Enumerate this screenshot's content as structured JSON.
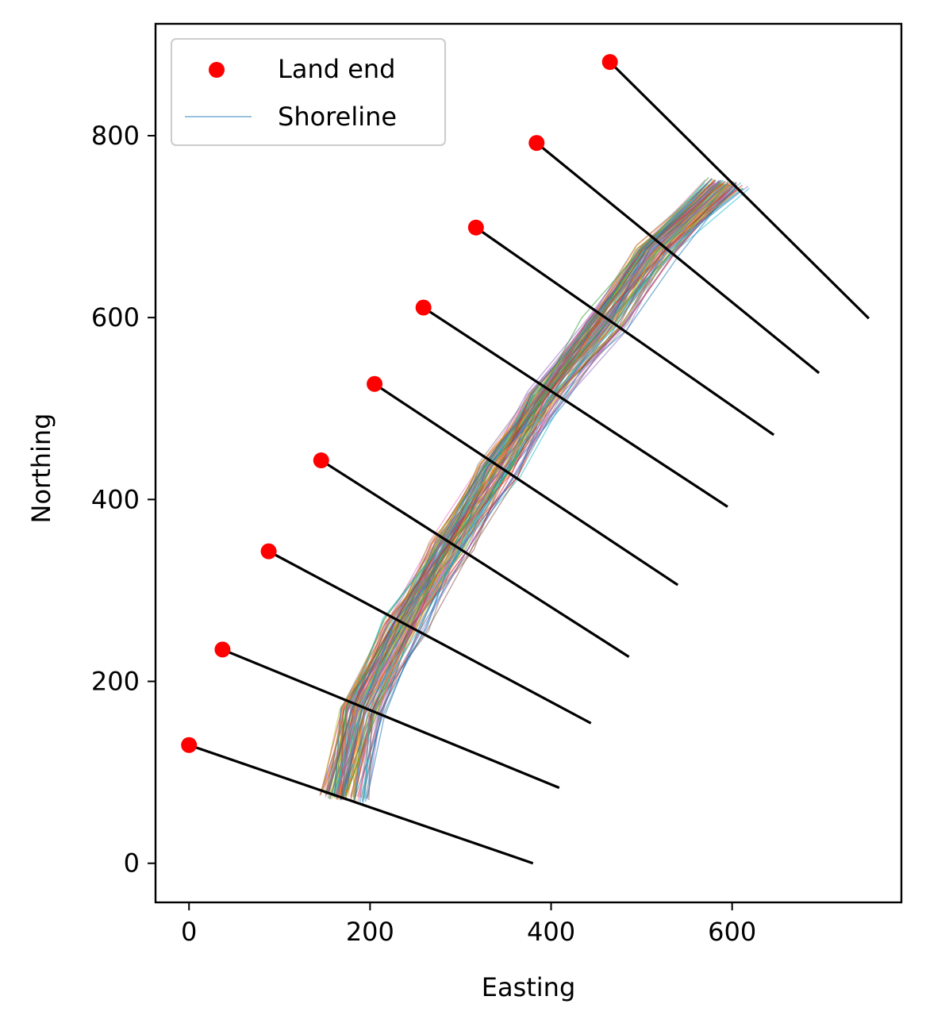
{
  "chart_data": {
    "type": "scatter",
    "title": "",
    "xlabel": "Easting",
    "ylabel": "Northing",
    "xlim": [
      -37,
      787
    ],
    "ylim": [
      -43,
      923
    ],
    "xticks": [
      0,
      200,
      400,
      600
    ],
    "yticks": [
      0,
      200,
      400,
      600,
      800
    ],
    "grid": false,
    "legend": {
      "placement": "top-left",
      "entries": [
        {
          "label": "Land end",
          "kind": "marker",
          "color": "#ff0000"
        },
        {
          "label": "Shoreline",
          "kind": "line",
          "color": "#1f77b4"
        }
      ]
    },
    "series": [
      {
        "name": "Land end",
        "kind": "scatter",
        "color": "#ff0000",
        "points": [
          [
            0,
            130
          ],
          [
            37,
            235
          ],
          [
            88,
            343
          ],
          [
            146,
            443
          ],
          [
            205,
            527
          ],
          [
            259,
            611
          ],
          [
            317,
            699
          ],
          [
            384,
            792
          ],
          [
            465,
            881
          ]
        ]
      }
    ],
    "transects": [
      {
        "start": [
          0,
          130
        ],
        "end": [
          380,
          0
        ]
      },
      {
        "start": [
          37,
          235
        ],
        "end": [
          409,
          83
        ]
      },
      {
        "start": [
          88,
          343
        ],
        "end": [
          444,
          154
        ]
      },
      {
        "start": [
          146,
          443
        ],
        "end": [
          486,
          227
        ]
      },
      {
        "start": [
          205,
          527
        ],
        "end": [
          540,
          306
        ]
      },
      {
        "start": [
          259,
          611
        ],
        "end": [
          595,
          392
        ]
      },
      {
        "start": [
          317,
          699
        ],
        "end": [
          646,
          471
        ]
      },
      {
        "start": [
          384,
          792
        ],
        "end": [
          696,
          539
        ]
      },
      {
        "start": [
          465,
          881
        ],
        "end": [
          751,
          599
        ]
      }
    ],
    "transect_color": "#000000",
    "shoreline_color_cycle": [
      "#1f77b4",
      "#ff7f0e",
      "#2ca02c",
      "#d62728",
      "#9467bd",
      "#8c564b",
      "#e377c2",
      "#7f7f7f",
      "#bcbd22",
      "#17becf"
    ],
    "shoreline_base": [
      [
        172,
        72
      ],
      [
        192,
        168
      ],
      [
        240,
        262
      ],
      [
        290,
        350
      ],
      [
        342,
        432
      ],
      [
        395,
        513
      ],
      [
        460,
        594
      ],
      [
        517,
        673
      ],
      [
        595,
        747
      ]
    ]
  }
}
